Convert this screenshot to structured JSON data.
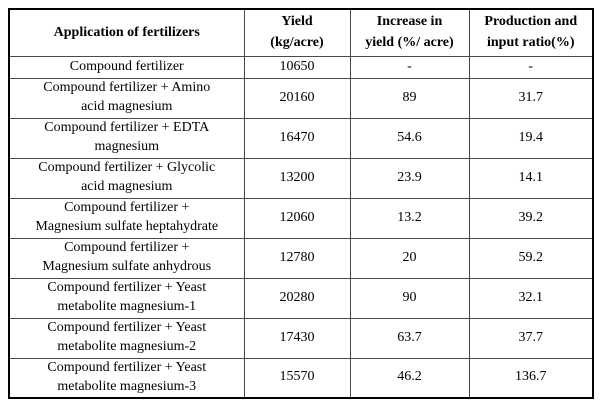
{
  "table": {
    "headers": [
      "Application of fertilizers",
      "Yield\n(kg/acre)",
      "Increase in\nyield (%/ acre)",
      "Production and\ninput ratio(%)"
    ],
    "rows": [
      {
        "cells": [
          "Compound fertilizer",
          "10650",
          "-",
          "-"
        ]
      },
      {
        "cells": [
          "Compound fertilizer + Amino\nacid magnesium",
          "20160",
          "89",
          "31.7"
        ]
      },
      {
        "cells": [
          "Compound fertilizer + EDTA\nmagnesium",
          "16470",
          "54.6",
          "19.4"
        ]
      },
      {
        "cells": [
          "Compound fertilizer + Glycolic\nacid magnesium",
          "13200",
          "23.9",
          "14.1"
        ]
      },
      {
        "cells": [
          "Compound fertilizer +\nMagnesium sulfate heptahydrate",
          "12060",
          "13.2",
          "39.2"
        ]
      },
      {
        "cells": [
          "Compound fertilizer +\nMagnesium sulfate anhydrous",
          "12780",
          "20",
          "59.2"
        ]
      },
      {
        "cells": [
          "Compound fertilizer + Yeast\nmetabolite magnesium-1",
          "20280",
          "90",
          "32.1"
        ]
      },
      {
        "cells": [
          "Compound fertilizer + Yeast\nmetabolite magnesium-2",
          "17430",
          "63.7",
          "37.7"
        ]
      },
      {
        "cells": [
          "Compound fertilizer + Yeast\nmetabolite magnesium-3",
          "15570",
          "46.2",
          "136.7"
        ]
      }
    ]
  }
}
